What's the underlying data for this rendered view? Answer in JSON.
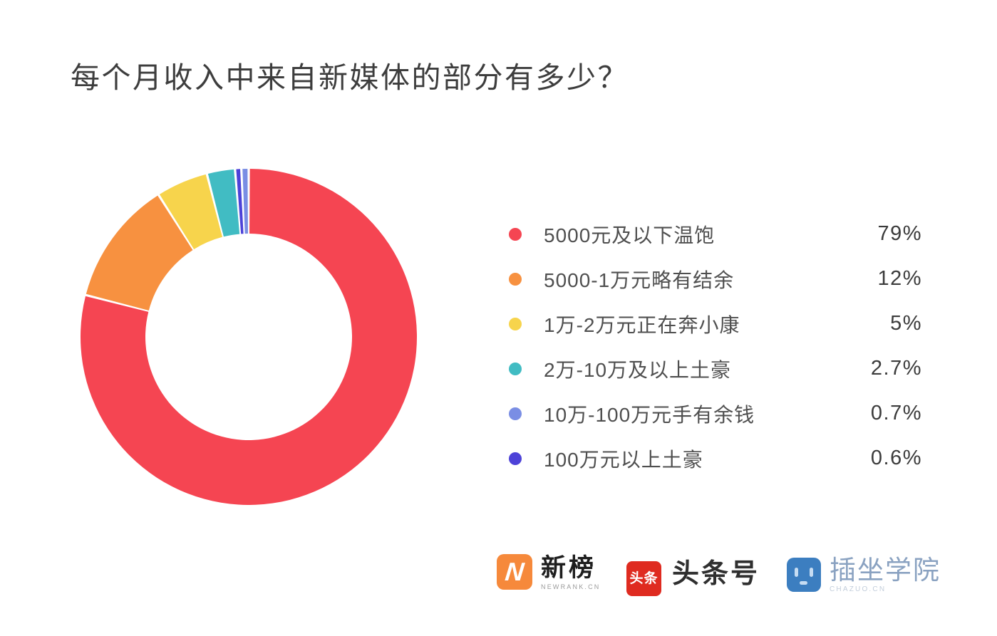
{
  "chart_data": {
    "type": "pie",
    "variant": "donut",
    "title": "每个月收入中来自新媒体的部分有多少？",
    "items": [
      {
        "label": "5000元及以下温饱",
        "value": 79,
        "percent_label": "79%",
        "color": "#F54552"
      },
      {
        "label": "5000-1万元略有结余",
        "value": 12,
        "percent_label": "12%",
        "color": "#F79140"
      },
      {
        "label": "1万-2万元正在奔小康",
        "value": 5,
        "percent_label": "5%",
        "color": "#F7D44C"
      },
      {
        "label": "2万-10万及以上土豪",
        "value": 2.7,
        "percent_label": "2.7%",
        "color": "#41BCC3"
      },
      {
        "label": "10万-100万元手有余钱",
        "value": 0.7,
        "percent_label": "0.7%",
        "color": "#7A8EE4"
      },
      {
        "label": "100万元以上土豪",
        "value": 0.6,
        "percent_label": "0.6%",
        "color": "#4D42D8"
      }
    ],
    "start_angle_deg": 0,
    "clockwise": true,
    "draw_order": [
      0,
      1,
      2,
      3,
      5,
      4
    ],
    "inner_radius_ratio": 0.615,
    "slice_gap_deg": 0.8,
    "legend_position": "right",
    "background": "#FFFFFF"
  },
  "footer": {
    "logos": [
      {
        "name": "新榜",
        "badge_text": "N",
        "title": "新榜",
        "subtitle": "NEWRANK.CN",
        "color": "#F6893B"
      },
      {
        "name": "头条号",
        "badge_text": "头条",
        "title": "头条号",
        "subtitle": "",
        "color": "#DF2B20"
      },
      {
        "name": "插坐学院",
        "badge_text": "",
        "title": "插坐学院",
        "subtitle": "CHAZUO.CN",
        "color": "#3C7EC0"
      }
    ]
  }
}
